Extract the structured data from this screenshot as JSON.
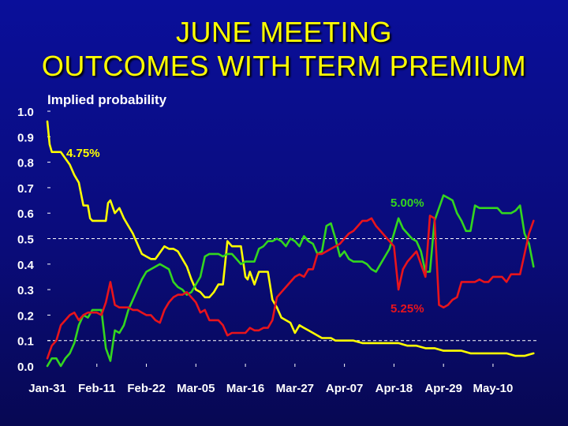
{
  "slide": {
    "title_line1": "JUNE MEETING",
    "title_line2": "OUTCOMES WITH TERM PREMIUM"
  },
  "colors": {
    "background": "#0a0c7c",
    "title": "#ffff00",
    "yellow_series": "#ffff00",
    "green_series": "#33d61f",
    "red_series": "#e8141c",
    "gridline": "#ffffff",
    "text": "#ffffff"
  },
  "chart_data": {
    "type": "line",
    "ylabel": "Implied probability",
    "xlabel": "",
    "title": "",
    "ylim": [
      0.0,
      1.0
    ],
    "yticks": [
      "0.0",
      "0.1",
      "0.2",
      "0.3",
      "0.4",
      "0.5",
      "0.6",
      "0.7",
      "0.8",
      "0.9",
      "1.0"
    ],
    "xticks": [
      "Jan-31",
      "Feb-11",
      "Feb-22",
      "Mar-05",
      "Mar-16",
      "Mar-27",
      "Apr-07",
      "Apr-18",
      "Apr-29",
      "May-10"
    ],
    "xtick_days": [
      0,
      11,
      22,
      33,
      44,
      55,
      66,
      77,
      88,
      99
    ],
    "xlim_days": [
      0,
      109
    ],
    "gridlines_y": [
      0.1,
      0.5
    ],
    "grid": "dashed horizontal at 0.1 and 0.5",
    "series": [
      {
        "name": "4.75%",
        "color": "#ffff00",
        "x": [
          0,
          0.5,
          1,
          3,
          5,
          6,
          7,
          8,
          9,
          9.5,
          10,
          11,
          13,
          13.5,
          14,
          15,
          16,
          17,
          18,
          19,
          20,
          21,
          22,
          23,
          24,
          26,
          27,
          28,
          29,
          30,
          31,
          32,
          33,
          34,
          35,
          36,
          37,
          38,
          39,
          40,
          41,
          42,
          43,
          44,
          44.5,
          45,
          46,
          47,
          48,
          49,
          50,
          51,
          52,
          53,
          54,
          55,
          56,
          57,
          58,
          59,
          60,
          61,
          62,
          63,
          64,
          66,
          68,
          70,
          72,
          74,
          76,
          78,
          80,
          82,
          84,
          86,
          88,
          90,
          92,
          94,
          96,
          98,
          100,
          102,
          104,
          106,
          108
        ],
        "y": [
          0.96,
          0.87,
          0.84,
          0.84,
          0.79,
          0.75,
          0.72,
          0.63,
          0.63,
          0.58,
          0.57,
          0.57,
          0.57,
          0.64,
          0.65,
          0.6,
          0.62,
          0.58,
          0.55,
          0.52,
          0.48,
          0.44,
          0.43,
          0.42,
          0.42,
          0.47,
          0.46,
          0.46,
          0.45,
          0.42,
          0.39,
          0.34,
          0.3,
          0.29,
          0.27,
          0.27,
          0.29,
          0.32,
          0.32,
          0.49,
          0.47,
          0.47,
          0.47,
          0.35,
          0.34,
          0.37,
          0.32,
          0.37,
          0.37,
          0.37,
          0.26,
          0.23,
          0.19,
          0.18,
          0.17,
          0.13,
          0.16,
          0.15,
          0.14,
          0.13,
          0.12,
          0.11,
          0.11,
          0.11,
          0.1,
          0.1,
          0.1,
          0.09,
          0.09,
          0.09,
          0.09,
          0.09,
          0.08,
          0.08,
          0.07,
          0.07,
          0.06,
          0.06,
          0.06,
          0.05,
          0.05,
          0.05,
          0.05,
          0.05,
          0.04,
          0.04,
          0.05
        ]
      },
      {
        "name": "5.00%",
        "color": "#33d61f",
        "x": [
          0,
          1,
          2,
          3,
          4,
          5,
          6,
          7,
          8,
          9,
          10,
          11,
          12,
          13,
          14,
          15,
          16,
          17,
          18,
          19,
          20,
          21,
          22,
          23,
          24,
          25,
          26,
          27,
          28,
          29,
          30,
          31,
          32,
          33,
          34,
          35,
          36,
          37,
          38,
          39,
          40,
          41,
          42,
          43,
          44,
          45,
          46,
          47,
          48,
          49,
          50,
          51,
          52,
          53,
          54,
          55,
          56,
          57,
          58,
          59,
          60,
          61,
          62,
          63,
          64,
          65,
          66,
          67,
          68,
          69,
          70,
          71,
          72,
          73,
          74,
          75,
          76,
          77,
          78,
          79,
          80,
          81,
          82,
          83,
          84,
          85,
          86,
          87,
          88,
          89,
          90,
          91,
          92,
          93,
          94,
          95,
          96,
          97,
          98,
          99,
          100,
          101,
          102,
          103,
          104,
          105,
          106,
          107,
          108
        ],
        "y": [
          0.0,
          0.03,
          0.03,
          0.0,
          0.03,
          0.05,
          0.09,
          0.16,
          0.2,
          0.19,
          0.22,
          0.22,
          0.22,
          0.07,
          0.02,
          0.14,
          0.13,
          0.16,
          0.22,
          0.26,
          0.3,
          0.34,
          0.37,
          0.38,
          0.39,
          0.4,
          0.39,
          0.38,
          0.33,
          0.31,
          0.3,
          0.28,
          0.29,
          0.32,
          0.35,
          0.43,
          0.44,
          0.44,
          0.44,
          0.43,
          0.44,
          0.44,
          0.42,
          0.4,
          0.41,
          0.41,
          0.41,
          0.46,
          0.47,
          0.49,
          0.49,
          0.5,
          0.49,
          0.47,
          0.5,
          0.49,
          0.47,
          0.51,
          0.49,
          0.48,
          0.44,
          0.45,
          0.55,
          0.56,
          0.5,
          0.43,
          0.45,
          0.42,
          0.41,
          0.41,
          0.41,
          0.4,
          0.38,
          0.37,
          0.4,
          0.43,
          0.46,
          0.52,
          0.58,
          0.54,
          0.52,
          0.5,
          0.49,
          0.45,
          0.37,
          0.37,
          0.57,
          0.62,
          0.67,
          0.66,
          0.65,
          0.6,
          0.57,
          0.53,
          0.53,
          0.63,
          0.62,
          0.62,
          0.62,
          0.62,
          0.62,
          0.6,
          0.6,
          0.6,
          0.61,
          0.63,
          0.52,
          0.48,
          0.39
        ]
      },
      {
        "name": "5.25%",
        "color": "#e8141c",
        "x": [
          0,
          1,
          2,
          3,
          4,
          5,
          6,
          7,
          8,
          9,
          10,
          11,
          12,
          13,
          14,
          15,
          16,
          17,
          18,
          19,
          20,
          21,
          22,
          23,
          24,
          25,
          26,
          27,
          28,
          29,
          30,
          31,
          32,
          33,
          34,
          35,
          36,
          37,
          38,
          39,
          40,
          41,
          42,
          43,
          44,
          45,
          46,
          47,
          48,
          49,
          50,
          51,
          52,
          53,
          54,
          55,
          56,
          57,
          58,
          59,
          60,
          61,
          62,
          63,
          64,
          65,
          66,
          67,
          68,
          69,
          70,
          71,
          72,
          73,
          74,
          75,
          76,
          77,
          78,
          79,
          80,
          81,
          82,
          83,
          84,
          85,
          86,
          87,
          88,
          89,
          90,
          91,
          92,
          93,
          94,
          95,
          96,
          97,
          98,
          99,
          100,
          101,
          102,
          103,
          104,
          105,
          106,
          107,
          108
        ],
        "y": [
          0.03,
          0.08,
          0.1,
          0.16,
          0.18,
          0.2,
          0.21,
          0.18,
          0.2,
          0.21,
          0.21,
          0.21,
          0.2,
          0.25,
          0.33,
          0.24,
          0.23,
          0.23,
          0.23,
          0.22,
          0.22,
          0.21,
          0.2,
          0.2,
          0.18,
          0.17,
          0.22,
          0.25,
          0.27,
          0.28,
          0.28,
          0.29,
          0.27,
          0.25,
          0.21,
          0.22,
          0.18,
          0.18,
          0.18,
          0.16,
          0.12,
          0.13,
          0.13,
          0.13,
          0.13,
          0.15,
          0.14,
          0.14,
          0.15,
          0.15,
          0.18,
          0.27,
          0.29,
          0.31,
          0.33,
          0.35,
          0.36,
          0.35,
          0.38,
          0.38,
          0.44,
          0.44,
          0.45,
          0.46,
          0.47,
          0.48,
          0.5,
          0.52,
          0.53,
          0.55,
          0.57,
          0.57,
          0.58,
          0.55,
          0.53,
          0.51,
          0.49,
          0.47,
          0.3,
          0.38,
          0.41,
          0.43,
          0.45,
          0.4,
          0.35,
          0.59,
          0.58,
          0.24,
          0.23,
          0.24,
          0.26,
          0.27,
          0.33,
          0.33,
          0.33,
          0.33,
          0.34,
          0.33,
          0.33,
          0.35,
          0.35,
          0.35,
          0.33,
          0.36,
          0.36,
          0.36,
          0.44,
          0.52,
          0.57
        ]
      }
    ],
    "annotations": [
      {
        "text": "4.75%",
        "series": "4.75%"
      },
      {
        "text": "5.00%",
        "series": "5.00%"
      },
      {
        "text": "5.25%",
        "series": "5.25%"
      }
    ]
  }
}
